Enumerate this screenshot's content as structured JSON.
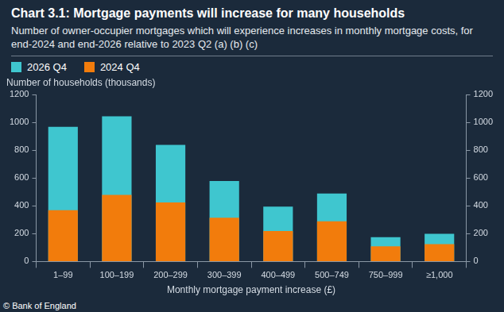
{
  "chart_data": {
    "type": "bar",
    "title": "Chart 3.1: Mortgage payments will increase for many households",
    "subtitle": "Number of owner-occupier mortgages which will experience increases in monthly mortgage costs, for end-2024 and end-2026 relative to 2023 Q2 (a) (b) (c)",
    "ylabel": "Number of households (thousands)",
    "xlabel": "Monthly mortgage payment increase (£)",
    "source": "© Bank of England",
    "categories": [
      "1–99",
      "100–199",
      "200–299",
      "300–399",
      "400–499",
      "500–749",
      "750–999",
      "≥1,000"
    ],
    "series": [
      {
        "name": "2026 Q4",
        "color": "#3fc6cf",
        "values": [
          970,
          1045,
          840,
          580,
          395,
          490,
          175,
          200
        ]
      },
      {
        "name": "2024 Q4",
        "color": "#f27c0c",
        "values": [
          370,
          480,
          425,
          315,
          220,
          290,
          110,
          125
        ]
      }
    ],
    "ylim": [
      0,
      1200
    ],
    "yticks": [
      0,
      200,
      400,
      600,
      800,
      1000,
      1200
    ],
    "y2lim": [
      0,
      1200
    ],
    "y2ticks": [
      0,
      200,
      400,
      600,
      800,
      1000,
      1200
    ],
    "grid": false,
    "legend": "top-left"
  }
}
